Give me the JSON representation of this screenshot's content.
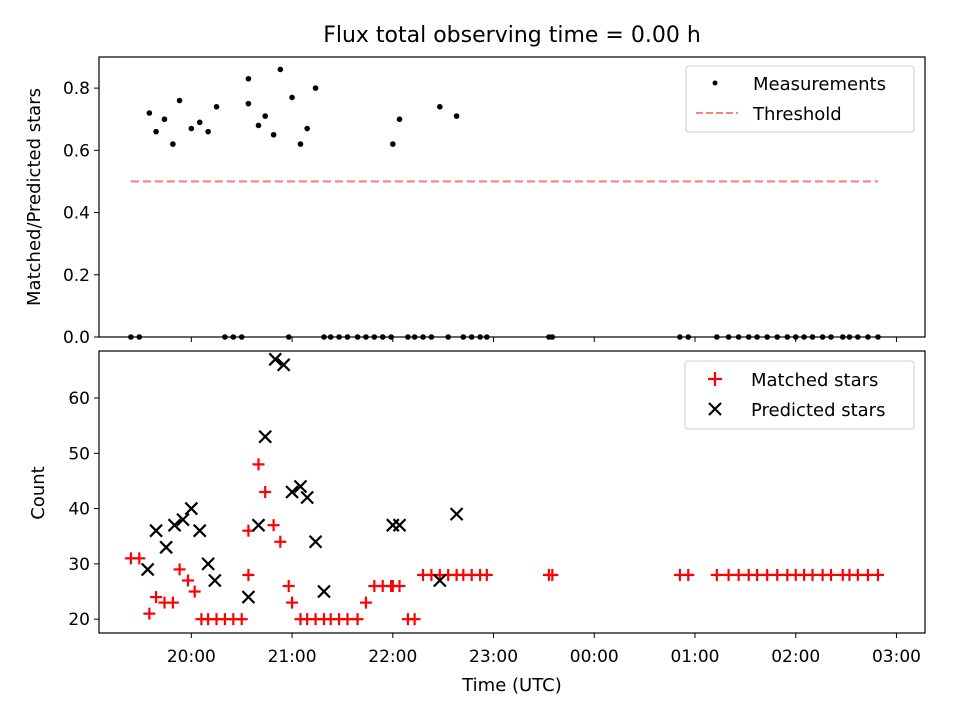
{
  "title": "Flux total observing time = 0.00 h",
  "colors": {
    "measurement": "#000000",
    "threshold": "#ff7f7f",
    "matched": "#ff0000",
    "predicted": "#000000"
  },
  "chart_data": [
    {
      "type": "scatter",
      "title": "Flux total observing time = 0.00 h",
      "xlabel": "",
      "ylabel": "Matched/Predicted stars",
      "xlim": [
        "19:05",
        "27:17"
      ],
      "ylim": [
        0,
        0.9
      ],
      "yticks": [
        0.0,
        0.2,
        0.4,
        0.6,
        0.8
      ],
      "ytick_labels": [
        "0.0",
        "0.2",
        "0.4",
        "0.6",
        "0.8"
      ],
      "legend_position": "top-right",
      "legend": [
        "Measurements",
        "Threshold"
      ],
      "series": [
        {
          "name": "Measurements",
          "marker": "dot",
          "x": [
            "19:24",
            "19:29",
            "19:35",
            "19:39",
            "19:44",
            "19:49",
            "19:53",
            "20:00",
            "20:05",
            "20:10",
            "20:15",
            "20:20",
            "20:25",
            "20:30",
            "20:34",
            "20:34",
            "20:40",
            "20:44",
            "20:49",
            "20:53",
            "20:58",
            "21:00",
            "21:05",
            "21:09",
            "21:14",
            "21:19",
            "21:23",
            "21:28",
            "21:33",
            "21:39",
            "21:44",
            "21:49",
            "21:54",
            "21:59",
            "22:00",
            "22:04",
            "22:09",
            "22:13",
            "22:18",
            "22:23",
            "22:28",
            "22:33",
            "22:38",
            "22:42",
            "22:47",
            "22:52",
            "22:56",
            "23:33",
            "23:35",
            "24:51",
            "24:56",
            "25:13",
            "25:20",
            "25:26",
            "25:32",
            "25:37",
            "25:43",
            "25:49",
            "25:55",
            "26:00",
            "26:05",
            "26:10",
            "26:16",
            "26:21",
            "26:28",
            "26:32",
            "26:37",
            "26:43",
            "26:49"
          ],
          "y": [
            0,
            0,
            0.72,
            0.66,
            0.7,
            0.62,
            0.76,
            0.67,
            0.69,
            0.66,
            0.74,
            0,
            0,
            0,
            0.83,
            0.75,
            0.68,
            0.71,
            0.65,
            0.86,
            0,
            0.77,
            0.62,
            0.67,
            0.8,
            0,
            0,
            0,
            0,
            0,
            0,
            0,
            0,
            0,
            0.62,
            0.7,
            0,
            0,
            0,
            0,
            0.74,
            0,
            0.71,
            0,
            0,
            0,
            0,
            0,
            0,
            0,
            0,
            0,
            0,
            0,
            0,
            0,
            0,
            0,
            0,
            0,
            0,
            0,
            0,
            0,
            0,
            0,
            0,
            0,
            0
          ]
        },
        {
          "name": "Threshold",
          "style": "dashed",
          "x": [
            "19:24",
            "26:49"
          ],
          "y": [
            0.5,
            0.5
          ]
        }
      ]
    },
    {
      "type": "scatter",
      "xlabel": "Time (UTC)",
      "ylabel": "Count",
      "xlim": [
        "19:05",
        "27:17"
      ],
      "ylim": [
        17.5,
        68.5
      ],
      "yticks": [
        20,
        30,
        40,
        50,
        60
      ],
      "ytick_labels": [
        "20",
        "30",
        "40",
        "50",
        "60"
      ],
      "xticks": [
        "20:00",
        "21:00",
        "22:00",
        "23:00",
        "24:00",
        "25:00",
        "26:00",
        "27:00"
      ],
      "xtick_labels": [
        "20:00",
        "21:00",
        "22:00",
        "23:00",
        "00:00",
        "01:00",
        "02:00",
        "03:00"
      ],
      "legend_position": "top-right",
      "legend": [
        "Matched stars",
        "Predicted stars"
      ],
      "series": [
        {
          "name": "Matched stars",
          "marker": "plus",
          "x": [
            "19:24",
            "19:29",
            "19:35",
            "19:39",
            "19:44",
            "19:49",
            "19:53",
            "19:58",
            "20:02",
            "20:06",
            "20:10",
            "20:15",
            "20:20",
            "20:25",
            "20:30",
            "20:34",
            "20:34",
            "20:40",
            "20:44",
            "20:49",
            "20:53",
            "20:58",
            "21:00",
            "21:05",
            "21:09",
            "21:14",
            "21:19",
            "21:23",
            "21:28",
            "21:33",
            "21:39",
            "21:44",
            "21:49",
            "21:54",
            "21:59",
            "22:00",
            "22:04",
            "22:09",
            "22:13",
            "22:18",
            "22:23",
            "22:28",
            "22:33",
            "22:38",
            "22:42",
            "22:47",
            "22:52",
            "22:56",
            "23:33",
            "23:35",
            "24:51",
            "24:56",
            "25:13",
            "25:20",
            "25:26",
            "25:32",
            "25:37",
            "25:43",
            "25:49",
            "25:55",
            "26:00",
            "26:05",
            "26:10",
            "26:16",
            "26:21",
            "26:28",
            "26:32",
            "26:37",
            "26:43",
            "26:49"
          ],
          "y": [
            31,
            31,
            21,
            24,
            23,
            23,
            29,
            27,
            25,
            20,
            20,
            20,
            20,
            20,
            20,
            28,
            36,
            48,
            43,
            37,
            34,
            26,
            23,
            20,
            20,
            20,
            20,
            20,
            20,
            20,
            20,
            23,
            26,
            26,
            26,
            26,
            26,
            20,
            20,
            28,
            28,
            28,
            28,
            28,
            28,
            28,
            28,
            28,
            28,
            28,
            28,
            28,
            28,
            28,
            28,
            28,
            28,
            28,
            28,
            28,
            28,
            28,
            28,
            28,
            28,
            28,
            28,
            28,
            28,
            28
          ]
        },
        {
          "name": "Predicted stars",
          "marker": "x",
          "x": [
            "19:34",
            "19:39",
            "19:45",
            "19:50",
            "19:55",
            "20:00",
            "20:05",
            "20:10",
            "20:14",
            "20:34",
            "20:40",
            "20:44",
            "20:50",
            "20:55",
            "21:00",
            "21:05",
            "21:09",
            "21:14",
            "21:19",
            "22:00",
            "22:04",
            "22:28",
            "22:38"
          ],
          "y": [
            29,
            36,
            33,
            37,
            38,
            40,
            36,
            30,
            27,
            24,
            37,
            53,
            67,
            66,
            43,
            44,
            42,
            34,
            25,
            37,
            37,
            27,
            39
          ]
        }
      ]
    }
  ]
}
